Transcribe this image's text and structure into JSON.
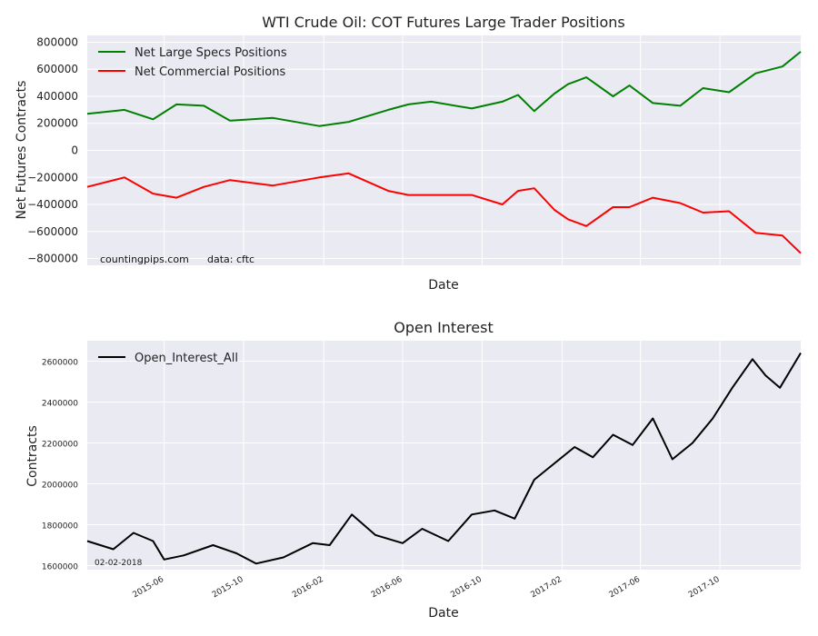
{
  "chart_data": [
    {
      "type": "line",
      "title": "WTI Crude Oil: COT Futures Large Trader Positions",
      "xlabel": "Date",
      "ylabel": "Net Futures Contracts",
      "ylim": [
        -850000,
        850000
      ],
      "yticks": [
        "800000",
        "600000",
        "400000",
        "200000",
        "0",
        "−200000",
        "−400000",
        "−600000",
        "−800000"
      ],
      "grid": true,
      "legend_position": "top-left",
      "annotations": [
        "countingpips.com",
        "data: cftc"
      ],
      "x_range": [
        "2015-02-03",
        "2018-02-02"
      ],
      "series": [
        {
          "name": "Net Large Specs Positions",
          "color": "#008000",
          "x": [
            "2015-02-03",
            "2015-04-01",
            "2015-05-15",
            "2015-06-20",
            "2015-08-01",
            "2015-09-10",
            "2015-11-15",
            "2016-01-25",
            "2016-03-10",
            "2016-05-10",
            "2016-06-10",
            "2016-07-15",
            "2016-09-15",
            "2016-11-01",
            "2016-11-25",
            "2016-12-20",
            "2017-01-20",
            "2017-02-10",
            "2017-03-10",
            "2017-04-20",
            "2017-05-15",
            "2017-06-20",
            "2017-08-01",
            "2017-09-05",
            "2017-10-15",
            "2017-11-25",
            "2018-01-05",
            "2018-02-02"
          ],
          "values": [
            270000,
            300000,
            230000,
            340000,
            330000,
            220000,
            240000,
            180000,
            210000,
            300000,
            340000,
            360000,
            310000,
            360000,
            410000,
            290000,
            420000,
            490000,
            540000,
            400000,
            480000,
            350000,
            330000,
            460000,
            430000,
            570000,
            620000,
            730000
          ]
        },
        {
          "name": "Net Commercial Positions",
          "color": "#ff0000",
          "x": [
            "2015-02-03",
            "2015-04-01",
            "2015-05-15",
            "2015-06-20",
            "2015-08-01",
            "2015-09-10",
            "2015-11-15",
            "2016-01-25",
            "2016-03-10",
            "2016-05-10",
            "2016-06-10",
            "2016-07-15",
            "2016-09-15",
            "2016-11-01",
            "2016-11-25",
            "2016-12-20",
            "2017-01-20",
            "2017-02-10",
            "2017-03-10",
            "2017-04-20",
            "2017-05-15",
            "2017-06-20",
            "2017-08-01",
            "2017-09-05",
            "2017-10-15",
            "2017-11-25",
            "2018-01-05",
            "2018-02-02"
          ],
          "values": [
            -270000,
            -200000,
            -320000,
            -350000,
            -270000,
            -220000,
            -260000,
            -200000,
            -170000,
            -300000,
            -330000,
            -330000,
            -330000,
            -400000,
            -300000,
            -280000,
            -440000,
            -510000,
            -560000,
            -420000,
            -420000,
            -350000,
            -390000,
            -460000,
            -450000,
            -610000,
            -630000,
            -760000
          ]
        }
      ]
    },
    {
      "type": "line",
      "title": "Open Interest",
      "xlabel": "Date",
      "ylabel": "Contracts",
      "ylim": [
        1580000,
        2700000
      ],
      "yticks": [
        "2600000",
        "2400000",
        "2200000",
        "2000000",
        "1800000",
        "1600000"
      ],
      "xticks": [
        "2015-06",
        "2015-10",
        "2016-02",
        "2016-06",
        "2016-10",
        "2017-02",
        "2017-06",
        "2017-10"
      ],
      "grid": true,
      "legend_position": "top-left",
      "annotations": [
        "02-02-2018"
      ],
      "x_range": [
        "2015-02-03",
        "2018-02-02"
      ],
      "series": [
        {
          "name": "Open_Interest_All",
          "color": "#000000",
          "x": [
            "2015-02-03",
            "2015-03-15",
            "2015-04-15",
            "2015-05-15",
            "2015-06-01",
            "2015-07-01",
            "2015-08-15",
            "2015-09-20",
            "2015-10-20",
            "2015-12-01",
            "2016-01-15",
            "2016-02-10",
            "2016-03-15",
            "2016-04-20",
            "2016-06-01",
            "2016-07-01",
            "2016-08-10",
            "2016-09-15",
            "2016-10-20",
            "2016-11-20",
            "2016-12-20",
            "2017-01-20",
            "2017-02-20",
            "2017-03-20",
            "2017-04-20",
            "2017-05-20",
            "2017-06-20",
            "2017-07-20",
            "2017-08-20",
            "2017-09-20",
            "2017-10-20",
            "2017-11-20",
            "2017-12-10",
            "2018-01-01",
            "2018-02-02"
          ],
          "values": [
            1720000,
            1680000,
            1760000,
            1720000,
            1630000,
            1650000,
            1700000,
            1660000,
            1610000,
            1640000,
            1710000,
            1700000,
            1850000,
            1750000,
            1710000,
            1780000,
            1720000,
            1850000,
            1870000,
            1830000,
            2020000,
            2100000,
            2180000,
            2130000,
            2240000,
            2190000,
            2320000,
            2120000,
            2200000,
            2320000,
            2470000,
            2610000,
            2530000,
            2470000,
            2640000
          ]
        }
      ]
    }
  ]
}
